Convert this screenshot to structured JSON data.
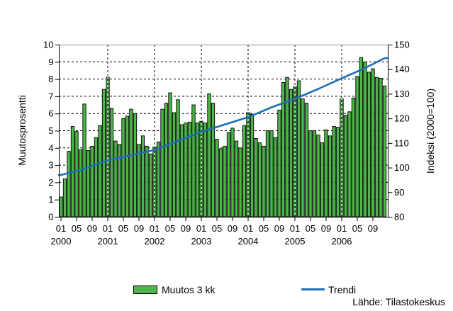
{
  "source_note": "Lähde: Tilastokeskus",
  "legend": {
    "bar_label": "Muutos 3 kk",
    "line_label": "Trendi"
  },
  "colors": {
    "bar_fill": "#4cb748",
    "bar_border": "#000000",
    "trend_line": "#1d6fb8",
    "grid": "#000000",
    "plot_top_border": "#8c8c8c",
    "axis": "#000000",
    "background": "#ffffff"
  },
  "chart_data": {
    "type": "bar",
    "title": "",
    "x_start": "2000-01",
    "x_end": "2006-12",
    "frequency": "monthly",
    "grid": "dashed horizontal at each integer, dashed vertical at each January",
    "legend_position": "bottom-center",
    "bar_series": {
      "name": "Muutos 3 kk",
      "axis": "left",
      "values": [
        1.15,
        2.2,
        3.8,
        5.25,
        4.95,
        3.9,
        6.55,
        3.85,
        4.1,
        4.6,
        5.3,
        7.4,
        8.1,
        6.3,
        4.4,
        4.2,
        5.7,
        5.85,
        6.25,
        6.0,
        4.2,
        4.7,
        4.1,
        3.65,
        4.05,
        4.35,
        6.25,
        6.6,
        7.2,
        6.05,
        6.8,
        5.35,
        5.45,
        5.5,
        6.5,
        5.45,
        5.55,
        5.45,
        7.15,
        6.6,
        4.5,
        3.95,
        4.1,
        4.9,
        5.15,
        4.4,
        4.0,
        5.3,
        6.05,
        5.95,
        4.55,
        4.3,
        4.1,
        5.0,
        5.0,
        4.6,
        6.2,
        7.8,
        8.1,
        7.4,
        7.55,
        7.9,
        6.85,
        6.6,
        5.0,
        5.0,
        4.75,
        4.3,
        5.05,
        4.7,
        5.25,
        5.2,
        6.85,
        5.9,
        6.1,
        6.9,
        8.15,
        9.25,
        9.0,
        8.4,
        8.6,
        8.1,
        8.05,
        7.6
      ]
    },
    "line_series": {
      "name": "Trendi",
      "axis": "right",
      "points_month_value": [
        [
          0,
          97
        ],
        [
          6,
          99.5
        ],
        [
          12,
          103
        ],
        [
          18,
          105
        ],
        [
          24,
          107.2
        ],
        [
          30,
          110.8
        ],
        [
          36,
          114.5
        ],
        [
          42,
          117.5
        ],
        [
          48,
          120.5
        ],
        [
          54,
          124.5
        ],
        [
          60,
          128
        ],
        [
          66,
          132
        ],
        [
          72,
          136.3
        ],
        [
          78,
          140.5
        ],
        [
          83,
          144.5
        ]
      ]
    },
    "left_axis": {
      "title": "Muutosprosentti",
      "min": 0,
      "max": 10,
      "tick_step": 1
    },
    "right_axis": {
      "title": "Indeksi (2000=100)",
      "min": 80,
      "max": 150,
      "tick_step": 10
    },
    "x_axis": {
      "month_tick_labels": [
        "01",
        "05",
        "09"
      ],
      "years": [
        2000,
        2001,
        2002,
        2003,
        2004,
        2005,
        2006
      ]
    }
  }
}
